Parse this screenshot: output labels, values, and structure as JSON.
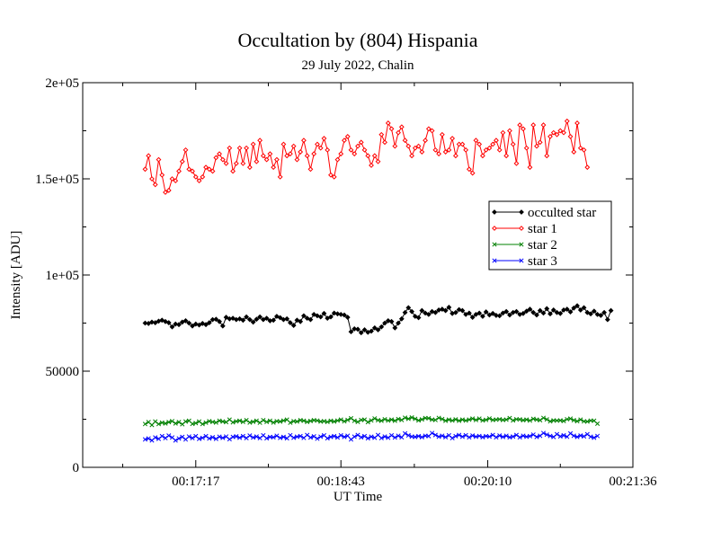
{
  "chart_data": {
    "type": "line",
    "title": "Occultation by (804) Hispania",
    "subtitle": "29 July 2022, Chalin",
    "xlabel": "UT Time",
    "ylabel": "Intensity [ADU]",
    "xticks": [
      "00:17:17",
      "00:18:43",
      "00:20:10",
      "00:21:36"
    ],
    "yticks": [
      "0",
      "50000",
      "1e+05",
      "1.5e+05",
      "2e+05"
    ],
    "ylim": [
      0,
      200000
    ],
    "x_range_seconds_of_day": [
      970,
      1296
    ],
    "x_start_seconds_of_day": 1007,
    "x_step_seconds": 2,
    "grid": false,
    "legend_position": "right-middle",
    "series": [
      {
        "name": "occulted star",
        "color": "#000000",
        "marker": "diamond",
        "values": [
          75000,
          74800,
          75500,
          75200,
          76000,
          76500,
          75800,
          75200,
          73000,
          74500,
          74200,
          75500,
          76200,
          75000,
          73500,
          74500,
          74000,
          74800,
          74200,
          75200,
          76800,
          77000,
          75800,
          73500,
          78000,
          77200,
          77500,
          76800,
          77200,
          76500,
          78200,
          76800,
          75500,
          77000,
          78200,
          76800,
          77500,
          76200,
          76500,
          78500,
          77800,
          76800,
          77200,
          75200,
          73800,
          76500,
          75800,
          78800,
          77500,
          76800,
          79500,
          78800,
          78200,
          80000,
          77500,
          78200,
          80200,
          79800,
          79500,
          79200,
          78000,
          70500,
          72000,
          71800,
          70000,
          71500,
          70200,
          70800,
          72500,
          71500,
          73000,
          75000,
          76200,
          75800,
          72500,
          75000,
          77200,
          80500,
          83000,
          81000,
          78500,
          77800,
          81500,
          80200,
          79500,
          81000,
          80500,
          81800,
          82200,
          81500,
          83200,
          80000,
          80500,
          82000,
          81500,
          79500,
          80200,
          78000,
          79500,
          80200,
          78500,
          80800,
          79200,
          80000,
          79000,
          78800,
          80200,
          81000,
          79200,
          80500,
          81000,
          79500,
          80000,
          81200,
          82200,
          80500,
          79200,
          81500,
          80200,
          82500,
          79800,
          81800,
          80500,
          80000,
          81800,
          82200,
          80800,
          82800,
          84000,
          81800,
          83000,
          80500,
          79800,
          81200,
          79500,
          79000,
          80500,
          76800,
          81500
        ],
        "x_values_omitted": true
      },
      {
        "name": "star 1",
        "color": "#ff0000",
        "marker": "diamond",
        "values": [
          155000,
          162000,
          150000,
          147000,
          160000,
          152000,
          143000,
          144000,
          150000,
          149000,
          154000,
          159000,
          165000,
          155000,
          154000,
          151000,
          149000,
          151000,
          156000,
          155000,
          154000,
          161000,
          163000,
          160000,
          158000,
          166000,
          154000,
          158000,
          166000,
          158000,
          166000,
          156000,
          168000,
          159000,
          170000,
          162000,
          160000,
          163000,
          156000,
          160000,
          151000,
          168000,
          162000,
          163000,
          167000,
          160000,
          164000,
          170000,
          162000,
          155000,
          163000,
          168000,
          166000,
          171000,
          165000,
          152000,
          151000,
          160000,
          163000,
          170000,
          172000,
          165000,
          163000,
          167000,
          169000,
          165000,
          162000,
          157000,
          162000,
          159000,
          173000,
          169000,
          179000,
          176000,
          167000,
          174000,
          177000,
          170000,
          167000,
          162000,
          166000,
          167000,
          164000,
          170000,
          176000,
          175000,
          165000,
          163000,
          173000,
          164000,
          165000,
          171000,
          162000,
          168000,
          168000,
          165000,
          155000,
          153000,
          170000,
          168000,
          162000,
          165000,
          166000,
          168000,
          170000,
          165000,
          174000,
          162000,
          175000,
          168000,
          158000,
          178000,
          176000,
          166000,
          156000,
          178000,
          167000,
          169000,
          178000,
          162000,
          172000,
          174000,
          173000,
          175000,
          174000,
          180000,
          172000,
          164000,
          179000,
          166000,
          165000,
          156000
        ]
      },
      {
        "name": "star 2",
        "color": "#008000",
        "marker": "x",
        "values": [
          22500,
          23500,
          22000,
          23800,
          22500,
          23200,
          22800,
          23500,
          24000,
          22800,
          23500,
          22400,
          23800,
          24200,
          22600,
          23000,
          23800,
          22500,
          23200,
          24000,
          23600,
          23300,
          24200,
          23800,
          23500,
          24800,
          23400,
          23900,
          24200,
          23600,
          24500,
          23300,
          23700,
          24200,
          23200,
          24500,
          23600,
          24200,
          23300,
          24000,
          23800,
          24300,
          24800,
          23200,
          24000,
          23800,
          24500,
          24200,
          23600,
          24100,
          24500,
          24300,
          23800,
          24000,
          23600,
          24200,
          23800,
          24300,
          24800,
          23900,
          24600,
          25500,
          24200,
          23600,
          24600,
          24800,
          23500,
          24400,
          25400,
          24500,
          24200,
          25000,
          24300,
          24800,
          24200,
          25100,
          24600,
          25800,
          25200,
          25900,
          25200,
          24400,
          24900,
          25600,
          25500,
          24800,
          24600,
          25700,
          25100,
          24200,
          24800,
          24300,
          24900,
          24200,
          24800,
          24300,
          24800,
          25300,
          24600,
          25300,
          24400,
          24700,
          25400,
          24600,
          24800,
          25000,
          24600,
          24800,
          25600,
          24400,
          25000,
          24900,
          24500,
          24800,
          24300,
          25200,
          24800,
          24500,
          25700,
          24900,
          23900,
          24400,
          24300,
          24400,
          24100,
          25000,
          25300,
          24500,
          24000,
          24800,
          23900,
          23800,
          24300,
          24200,
          22700
        ],
        "x_values_omitted": true
      },
      {
        "name": "star 3",
        "color": "#0000ff",
        "marker": "x",
        "values": [
          14500,
          15000,
          14000,
          15500,
          14800,
          16200,
          15200,
          16500,
          15500,
          14000,
          15000,
          15800,
          14500,
          16000,
          15200,
          16200,
          14800,
          15300,
          16200,
          15000,
          15600,
          14800,
          15900,
          15300,
          16000,
          14600,
          15800,
          16100,
          15400,
          16200,
          15200,
          16500,
          15500,
          16000,
          15200,
          16600,
          15100,
          15800,
          15600,
          16400,
          15300,
          15800,
          15100,
          16700,
          15400,
          15900,
          16200,
          15300,
          16800,
          15500,
          16100,
          14900,
          15900,
          16600,
          15100,
          15800,
          16200,
          15500,
          16600,
          15800,
          16400,
          14500,
          15900,
          16800,
          15600,
          16200,
          15100,
          15900,
          15400,
          16800,
          15200,
          16000,
          15400,
          16600,
          15500,
          16400,
          15600,
          17600,
          16600,
          16000,
          15800,
          16200,
          15700,
          16400,
          16200,
          17800,
          16800,
          15900,
          16400,
          15700,
          16600,
          15200,
          16200,
          16800,
          15900,
          16700,
          15600,
          16500,
          15900,
          16300,
          15700,
          16200,
          16000,
          16800,
          15600,
          16500,
          15800,
          16400,
          15600,
          16000,
          16800,
          15600,
          16400,
          15900,
          16200,
          17000,
          15800,
          16400,
          17800,
          17000,
          16300,
          15800,
          17200,
          16100,
          16600,
          15900,
          17600,
          16400,
          15800,
          16500,
          16100,
          17200,
          15900,
          15400,
          16300
        ],
        "x_values_omitted": true
      }
    ]
  }
}
